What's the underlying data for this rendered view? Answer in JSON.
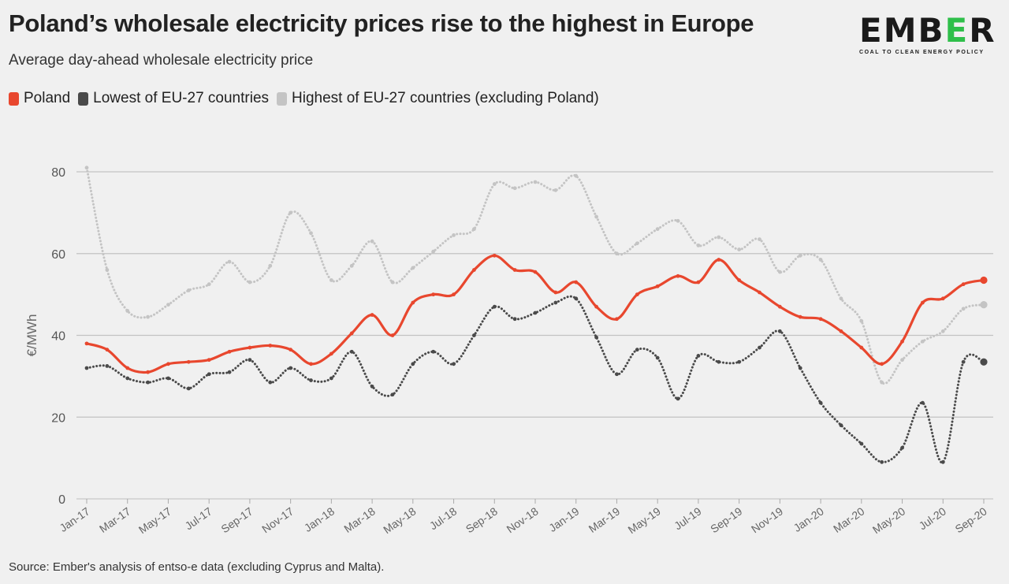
{
  "header": {
    "title": "Poland’s wholesale electricity prices rise to the highest in Europe",
    "subtitle": "Average day-ahead wholesale electricity price"
  },
  "logo": {
    "word_part1": "EMB",
    "word_accent": "E",
    "word_part2": "R",
    "tagline": "COAL TO CLEAN ENERGY POLICY"
  },
  "legend": [
    {
      "label": "Poland",
      "color": "#e8472e"
    },
    {
      "label": "Lowest of EU-27 countries",
      "color": "#4a4a4a"
    },
    {
      "label": "Highest of EU-27 countries (excluding Poland)",
      "color": "#c4c4c4"
    }
  ],
  "footer": {
    "source": "Source: Ember's analysis of entso-e data (excluding Cyprus and Malta)."
  },
  "chart_data": {
    "type": "line",
    "title": "Poland’s wholesale electricity prices rise to the highest in Europe",
    "subtitle": "Average day-ahead wholesale electricity price",
    "xlabel": "",
    "ylabel": "€/MWh",
    "ylim": [
      0,
      80
    ],
    "yticks": [
      0,
      20,
      40,
      60,
      80
    ],
    "grid": true,
    "legend_position": "top-left",
    "x_tick_labels": [
      "Jan-17",
      "Mar-17",
      "May-17",
      "Jul-17",
      "Sep-17",
      "Nov-17",
      "Jan-18",
      "Mar-18",
      "May-18",
      "Jul-18",
      "Sep-18",
      "Nov-18",
      "Jan-19",
      "Mar-19",
      "May-19",
      "Jul-19",
      "Sep-19",
      "Nov-19",
      "Jan-20",
      "Mar-20",
      "May-20",
      "Jul-20",
      "Sep-20"
    ],
    "categories": [
      "Jan-17",
      "Feb-17",
      "Mar-17",
      "Apr-17",
      "May-17",
      "Jun-17",
      "Jul-17",
      "Aug-17",
      "Sep-17",
      "Oct-17",
      "Nov-17",
      "Dec-17",
      "Jan-18",
      "Feb-18",
      "Mar-18",
      "Apr-18",
      "May-18",
      "Jun-18",
      "Jul-18",
      "Aug-18",
      "Sep-18",
      "Oct-18",
      "Nov-18",
      "Dec-18",
      "Jan-19",
      "Feb-19",
      "Mar-19",
      "Apr-19",
      "May-19",
      "Jun-19",
      "Jul-19",
      "Aug-19",
      "Sep-19",
      "Oct-19",
      "Nov-19",
      "Dec-19",
      "Jan-20",
      "Feb-20",
      "Mar-20",
      "Apr-20",
      "May-20",
      "Jun-20",
      "Jul-20",
      "Aug-20",
      "Sep-20"
    ],
    "series": [
      {
        "name": "Highest of EU-27 countries (excluding Poland)",
        "color": "#c4c4c4",
        "style": "dotted",
        "values": [
          81.0,
          56.0,
          46.0,
          44.5,
          47.5,
          51.0,
          52.5,
          58.0,
          53.0,
          57.0,
          70.0,
          65.0,
          53.5,
          57.0,
          63.0,
          53.0,
          56.5,
          60.5,
          64.5,
          66.0,
          77.0,
          76.0,
          77.5,
          75.5,
          79.0,
          69.0,
          60.0,
          62.5,
          66.0,
          68.0,
          62.0,
          64.0,
          61.0,
          63.5,
          55.5,
          59.5,
          58.5,
          49.0,
          43.5,
          28.5,
          34.0,
          38.5,
          41.0,
          46.5,
          47.5
        ]
      },
      {
        "name": "Lowest of EU-27 countries",
        "color": "#4a4a4a",
        "style": "dotted",
        "values": [
          32.0,
          32.5,
          29.5,
          28.5,
          29.5,
          27.0,
          30.5,
          31.0,
          34.0,
          28.5,
          32.0,
          29.0,
          29.5,
          36.0,
          27.5,
          25.5,
          33.0,
          36.0,
          33.0,
          40.0,
          47.0,
          44.0,
          45.5,
          48.0,
          49.0,
          39.5,
          30.5,
          36.5,
          34.5,
          24.5,
          35.0,
          33.5,
          33.5,
          37.0,
          41.0,
          32.0,
          23.5,
          18.0,
          13.5,
          9.0,
          12.5,
          23.5,
          9.0,
          33.5,
          33.5
        ]
      },
      {
        "name": "Poland",
        "color": "#e8472e",
        "style": "solid",
        "values": [
          38.0,
          36.5,
          32.0,
          31.0,
          33.0,
          33.5,
          34.0,
          36.0,
          37.0,
          37.5,
          36.5,
          33.0,
          35.5,
          40.5,
          45.0,
          40.0,
          48.0,
          50.0,
          50.0,
          56.0,
          59.5,
          56.0,
          55.5,
          50.5,
          53.0,
          47.0,
          44.0,
          50.0,
          52.0,
          54.5,
          53.0,
          58.5,
          53.5,
          50.5,
          47.0,
          44.5,
          44.0,
          41.0,
          37.0,
          33.0,
          38.5,
          48.0,
          49.0,
          52.5,
          53.5
        ]
      }
    ]
  }
}
